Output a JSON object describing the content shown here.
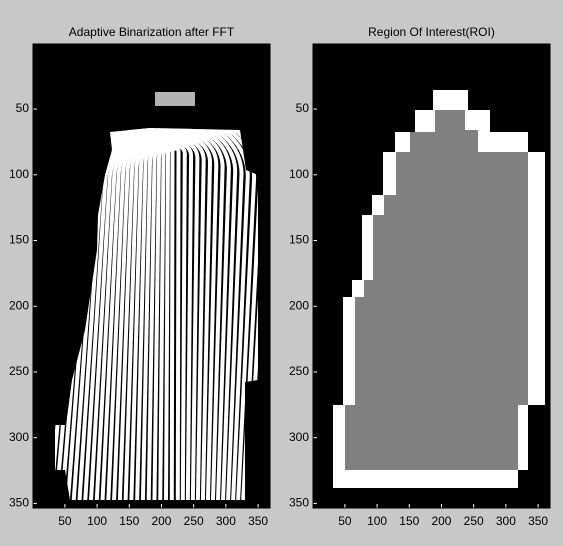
{
  "chart_data": [
    {
      "type": "image",
      "title": "Adaptive Binarization after FFT",
      "xlim": [
        0.5,
        368.5
      ],
      "ylim": [
        0.5,
        353.5
      ],
      "xticks": [
        50,
        100,
        150,
        200,
        250,
        300,
        350
      ],
      "yticks": [
        50,
        100,
        150,
        200,
        250,
        300,
        350
      ]
    },
    {
      "type": "image",
      "title": "Region Of Interest(ROI)",
      "xlim": [
        0.5,
        368.5
      ],
      "ylim": [
        0.5,
        353.5
      ],
      "xticks": [
        50,
        100,
        150,
        200,
        250,
        300,
        350
      ],
      "yticks": [
        50,
        100,
        150,
        200,
        250,
        300,
        350
      ]
    }
  ]
}
